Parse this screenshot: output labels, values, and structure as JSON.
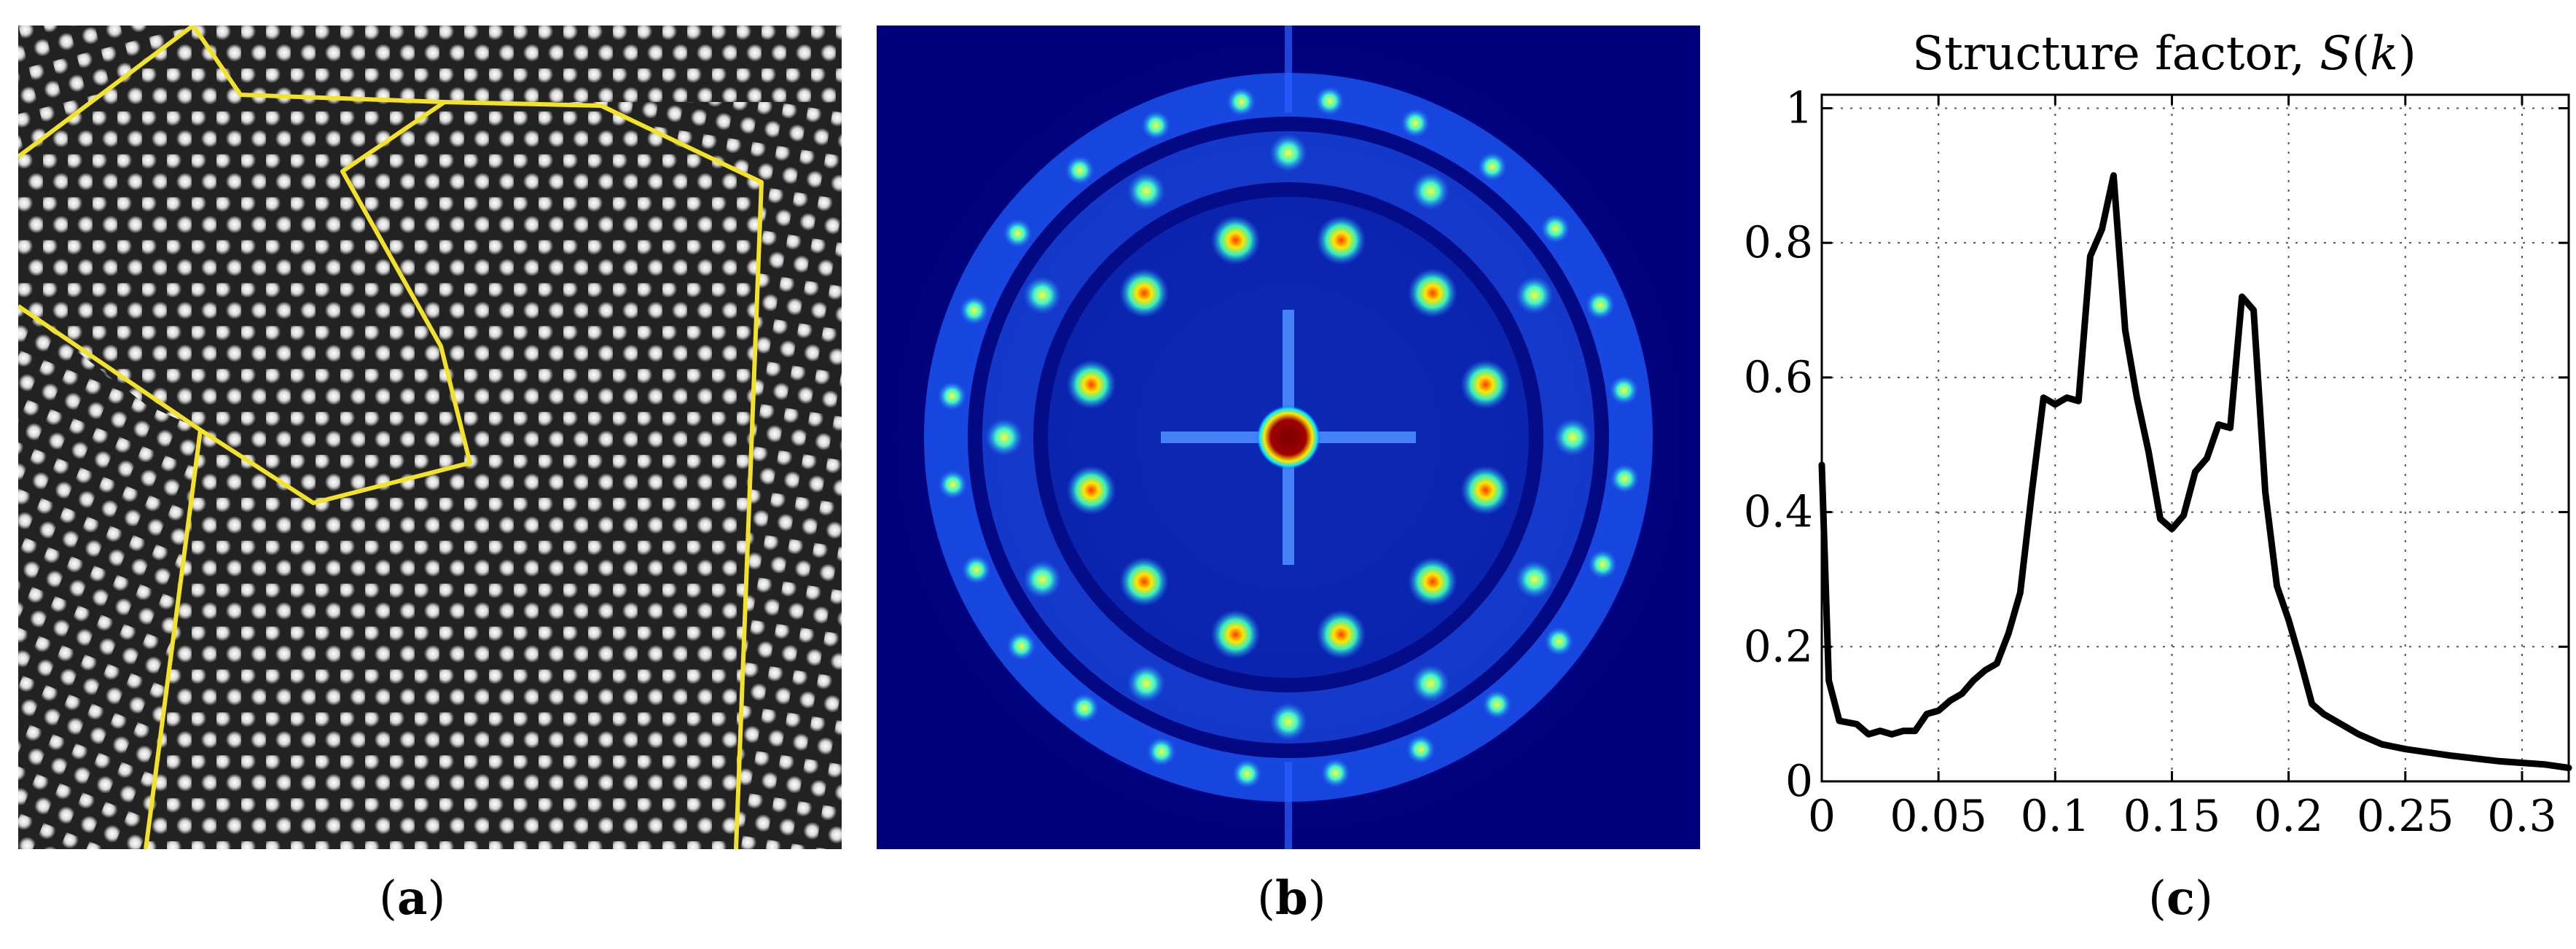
{
  "panel_a": {
    "caption": {
      "open": "(",
      "letter": "a",
      "close": ")"
    },
    "boundary_color": "#f2e22a"
  },
  "panel_b": {
    "caption": {
      "open": "(",
      "letter": "b",
      "close": ")"
    },
    "colormap": "jet"
  },
  "panel_c": {
    "caption": {
      "open": "(",
      "letter": "c",
      "close": ")"
    }
  },
  "chart_data": {
    "type": "line",
    "title": "Structure factor, S(k)",
    "title_prefix": "Structure factor, ",
    "title_symbol": "S",
    "title_paren_open": "(",
    "title_var": "k",
    "title_paren_close": ")",
    "xlim": [
      0,
      0.32
    ],
    "ylim": [
      0,
      1.02
    ],
    "xticks": [
      0,
      0.05,
      0.1,
      0.15,
      0.2,
      0.25,
      0.3
    ],
    "xtick_labels": [
      "0",
      "0.05",
      "0.1",
      "0.15",
      "0.2",
      "0.25",
      "0.3"
    ],
    "yticks": [
      0,
      0.2,
      0.4,
      0.6,
      0.8,
      1
    ],
    "ytick_labels": [
      "0",
      "0.2",
      "0.4",
      "0.6",
      "0.8",
      "1"
    ],
    "grid": true,
    "line_color": "#000000",
    "x": [
      0,
      0.003,
      0.0075,
      0.015,
      0.02,
      0.025,
      0.03,
      0.035,
      0.04,
      0.045,
      0.05,
      0.055,
      0.06,
      0.065,
      0.07,
      0.075,
      0.08,
      0.085,
      0.09,
      0.095,
      0.1,
      0.105,
      0.11,
      0.115,
      0.12,
      0.125,
      0.13,
      0.135,
      0.14,
      0.145,
      0.15,
      0.155,
      0.16,
      0.165,
      0.17,
      0.175,
      0.18,
      0.185,
      0.19,
      0.195,
      0.2,
      0.205,
      0.21,
      0.215,
      0.22,
      0.23,
      0.24,
      0.25,
      0.27,
      0.29,
      0.31,
      0.32
    ],
    "y": [
      0.47,
      0.15,
      0.09,
      0.085,
      0.07,
      0.075,
      0.07,
      0.075,
      0.075,
      0.1,
      0.105,
      0.12,
      0.13,
      0.15,
      0.165,
      0.175,
      0.22,
      0.28,
      0.43,
      0.57,
      0.56,
      0.57,
      0.565,
      0.78,
      0.82,
      0.9,
      0.67,
      0.57,
      0.49,
      0.39,
      0.375,
      0.395,
      0.46,
      0.48,
      0.53,
      0.525,
      0.72,
      0.7,
      0.43,
      0.29,
      0.24,
      0.18,
      0.115,
      0.1,
      0.09,
      0.07,
      0.055,
      0.048,
      0.038,
      0.03,
      0.025,
      0.02
    ]
  }
}
